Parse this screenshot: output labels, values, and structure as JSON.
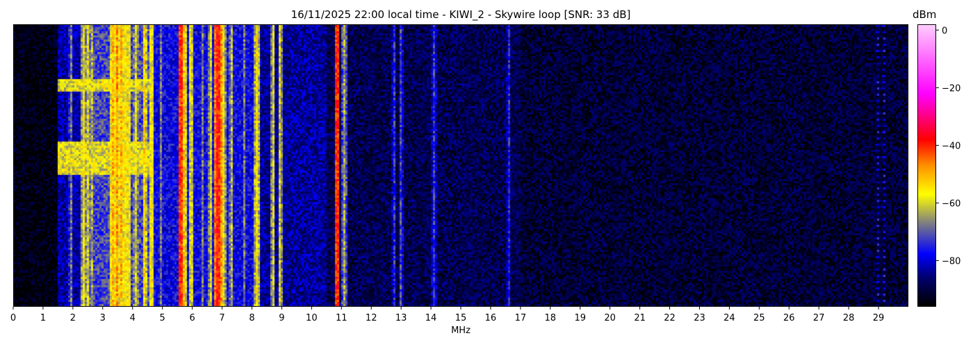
{
  "chart_data": {
    "type": "heatmap",
    "title": "16/11/2025 22:00 local time - KIWI_2 - Skywire loop [SNR: 33 dB]",
    "xlabel": "MHz",
    "ylabel": "",
    "xlim": [
      0,
      30
    ],
    "xticks": [
      0,
      1,
      2,
      3,
      4,
      5,
      6,
      7,
      8,
      9,
      10,
      11,
      12,
      13,
      14,
      15,
      16,
      17,
      18,
      19,
      20,
      21,
      22,
      23,
      24,
      25,
      26,
      27,
      28,
      29
    ],
    "colorbar": {
      "label": "dBm",
      "range": [
        -96,
        2
      ],
      "ticks": [
        0,
        -20,
        -40,
        -60,
        -80
      ],
      "tick_labels": [
        "0",
        "−20",
        "−40",
        "−60",
        "−80"
      ],
      "colormap_stops": [
        {
          "dbm": -96,
          "color": "#000000"
        },
        {
          "dbm": -86,
          "color": "#000070"
        },
        {
          "dbm": -78,
          "color": "#0000ff"
        },
        {
          "dbm": -67,
          "color": "#808080"
        },
        {
          "dbm": -57,
          "color": "#ffff00"
        },
        {
          "dbm": -47,
          "color": "#ff9000"
        },
        {
          "dbm": -38,
          "color": "#ff0000"
        },
        {
          "dbm": -22,
          "color": "#ff00ff"
        },
        {
          "dbm": 2,
          "color": "#ffccff"
        }
      ]
    },
    "noise_floor_dbm": [
      {
        "from": 0,
        "to": 1.45,
        "level": -95
      },
      {
        "from": 1.45,
        "to": 2.3,
        "level": -83
      },
      {
        "from": 2.3,
        "to": 4.7,
        "level": -72
      },
      {
        "from": 4.7,
        "to": 8.2,
        "level": -78
      },
      {
        "from": 8.2,
        "to": 10.5,
        "level": -84
      },
      {
        "from": 10.5,
        "to": 17,
        "level": -89
      },
      {
        "from": 17,
        "to": 30,
        "level": -91
      }
    ],
    "signals_dbm": [
      {
        "mhz": 1.9,
        "level": -68
      },
      {
        "mhz": 2.35,
        "level": -58
      },
      {
        "mhz": 2.48,
        "level": -60
      },
      {
        "mhz": 2.6,
        "level": -64
      },
      {
        "mhz": 3.3,
        "level": -50
      },
      {
        "mhz": 3.45,
        "level": -48
      },
      {
        "mhz": 3.6,
        "level": -50
      },
      {
        "mhz": 3.75,
        "level": -56
      },
      {
        "mhz": 4.1,
        "level": -60
      },
      {
        "mhz": 4.4,
        "level": -54
      },
      {
        "mhz": 4.6,
        "level": -58
      },
      {
        "mhz": 5.6,
        "level": -40
      },
      {
        "mhz": 5.72,
        "level": -52
      },
      {
        "mhz": 5.95,
        "level": -60
      },
      {
        "mhz": 6.6,
        "level": -60
      },
      {
        "mhz": 6.8,
        "level": -38
      },
      {
        "mhz": 6.9,
        "level": -40
      },
      {
        "mhz": 7.05,
        "level": -58
      },
      {
        "mhz": 7.3,
        "level": -62
      },
      {
        "mhz": 8.15,
        "level": -56
      },
      {
        "mhz": 8.7,
        "level": -60
      },
      {
        "mhz": 8.95,
        "level": -60
      },
      {
        "mhz": 10.85,
        "level": -40
      },
      {
        "mhz": 11.1,
        "level": -64
      },
      {
        "mhz": 12.75,
        "level": -74
      },
      {
        "mhz": 13.0,
        "level": -72
      },
      {
        "mhz": 14.1,
        "level": -74
      },
      {
        "mhz": 16.6,
        "level": -76
      },
      {
        "mhz": 28.98,
        "level": -78
      },
      {
        "mhz": 29.2,
        "level": -78
      }
    ]
  }
}
